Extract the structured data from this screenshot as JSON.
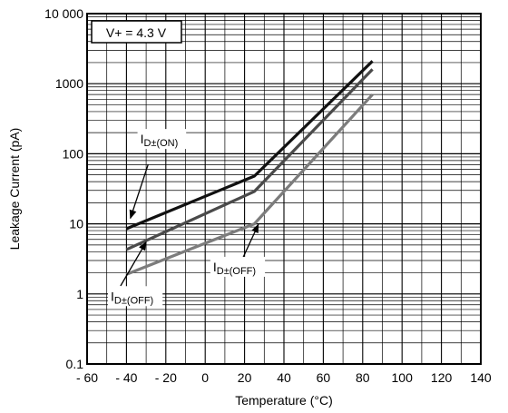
{
  "chart_data": {
    "type": "line",
    "xlabel": "Temperature (°C)",
    "ylabel": "Leakage Current (pA)",
    "xlim": [
      -60,
      140
    ],
    "ylim": [
      0.1,
      10000
    ],
    "y_scale": "log",
    "grid": true,
    "x_ticks": [
      -60,
      -40,
      -20,
      0,
      20,
      40,
      60,
      80,
      100,
      120,
      140
    ],
    "x_tick_labels": [
      "- 60",
      "- 40",
      "- 20",
      "0",
      "20",
      "40",
      "60",
      "80",
      "100",
      "120",
      "140"
    ],
    "y_ticks": [
      0.1,
      1,
      10,
      100,
      1000,
      10000
    ],
    "y_tick_labels": [
      "0.1",
      "1",
      "10",
      "100",
      "1000",
      "10 000"
    ],
    "condition_label": "V+ = 4.3 V",
    "series": [
      {
        "color": "#111111",
        "x": [
          -40,
          25,
          85
        ],
        "y": [
          8.5,
          48,
          2100
        ]
      },
      {
        "color": "#4a4a4a",
        "x": [
          -40,
          25,
          85
        ],
        "y": [
          4.3,
          29,
          1600
        ]
      },
      {
        "color": "#7c7c7c",
        "x": [
          -40,
          25,
          85
        ],
        "y": [
          1.9,
          10,
          700
        ]
      }
    ],
    "annotations": [
      {
        "main": "I",
        "sub": "D±(ON)",
        "text_at": [
          -33,
          140
        ],
        "arrow_from": [
          -29,
          70
        ],
        "arrow_to": [
          -38,
          12
        ]
      },
      {
        "main": "I",
        "sub": "D±(OFF)",
        "text_at": [
          -48,
          0.8
        ],
        "arrow_from": [
          -43,
          1.3
        ],
        "arrow_to": [
          -30,
          5.5
        ]
      },
      {
        "main": "I",
        "sub": "D±(OFF)",
        "text_at": [
          4,
          2.1
        ],
        "arrow_from": [
          19,
          3.2
        ],
        "arrow_to": [
          27,
          9.8
        ]
      }
    ]
  }
}
